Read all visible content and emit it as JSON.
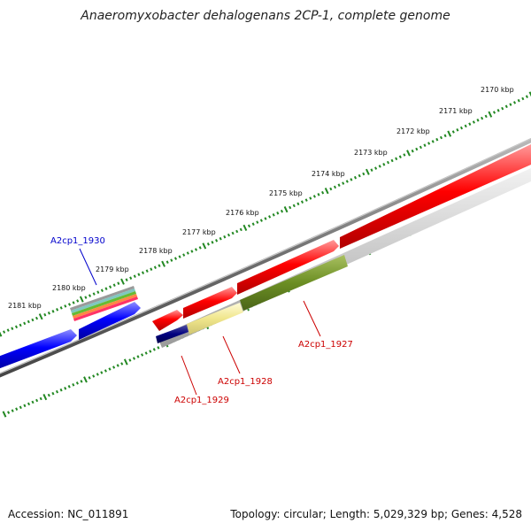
{
  "title": "Anaeromyxobacter dehalogenans 2CP-1, complete genome",
  "footer": {
    "accession": "Accession: NC_011891",
    "summary": "Topology: circular; Length: 5,029,329 bp; Genes: 4,528"
  },
  "ticks": [
    {
      "label": "2170 kbp"
    },
    {
      "label": "2171 kbp"
    },
    {
      "label": "2172 kbp"
    },
    {
      "label": "2173 kbp"
    },
    {
      "label": "2174 kbp"
    },
    {
      "label": "2175 kbp"
    },
    {
      "label": "2176 kbp"
    },
    {
      "label": "2177 kbp"
    },
    {
      "label": "2178 kbp"
    },
    {
      "label": "2179 kbp"
    },
    {
      "label": "2180 kbp"
    },
    {
      "label": "2181 kbp"
    }
  ],
  "gene_labels": [
    {
      "name": "A2cp1_1930",
      "color": "#0000cc"
    },
    {
      "name": "A2cp1_1929",
      "color": "#cc0000"
    },
    {
      "name": "A2cp1_1928",
      "color": "#cc0000"
    },
    {
      "name": "A2cp1_1927",
      "color": "#cc0000"
    }
  ],
  "colors": {
    "backbone": "#777777",
    "forward_cds": "#ff0000",
    "reverse_cds": "#0000ff",
    "tick": "#228822"
  }
}
